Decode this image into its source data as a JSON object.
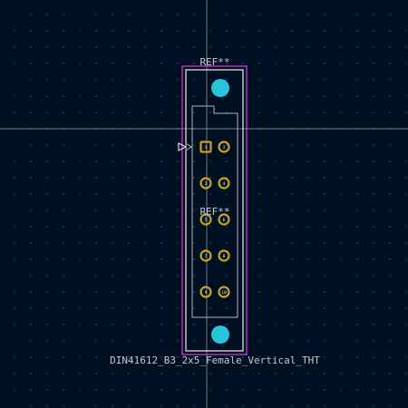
{
  "footprint": {
    "reference_top": "REF**",
    "reference_center": "REF**",
    "value": "DIN41612_B3_2x5_Female_Vertical_THT"
  },
  "pads": {
    "pin1_label": "1",
    "pin_labels": [
      "1",
      "2",
      "3",
      "4",
      "5",
      "6",
      "7",
      "8",
      "9",
      "10"
    ]
  },
  "colors": {
    "background": "#001023",
    "courtyard": "#e23de2",
    "fab": "#b4b4b4",
    "silkscreen": "#f0f0f0",
    "pad": "#c9a31c",
    "mounting_hole": "#26c5d9",
    "crosshair": "#c8c8c8",
    "ref_text": "#c8c8c8"
  }
}
